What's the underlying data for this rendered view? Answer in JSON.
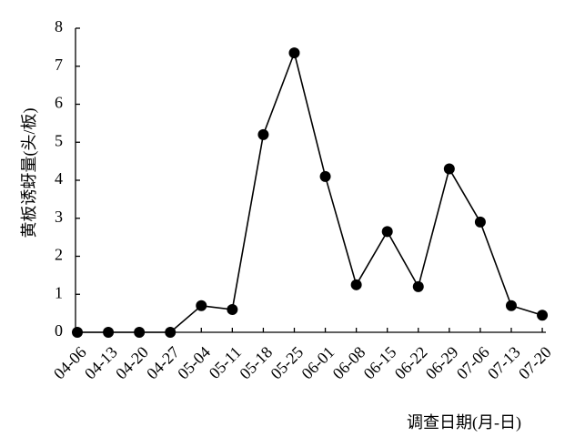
{
  "chart_data": {
    "type": "line",
    "y_label": "黄板诱蚜量(头/板)",
    "x_label": "调查日期(月-日)",
    "categories": [
      "04-06",
      "04-13",
      "04-20",
      "04-27",
      "05-04",
      "05-11",
      "05-18",
      "05-25",
      "06-01",
      "06-08",
      "06-15",
      "06-22",
      "06-29",
      "07-06",
      "07-13",
      "07-20"
    ],
    "values": [
      0,
      0,
      0,
      0,
      0.7,
      0.6,
      5.2,
      7.35,
      4.1,
      1.25,
      2.65,
      1.2,
      4.3,
      2.9,
      0.7,
      0.45
    ],
    "color": "#000000",
    "ylim": [
      0,
      8
    ],
    "yticks": [
      0,
      1,
      2,
      3,
      4,
      5,
      6,
      7,
      8
    ],
    "grid": false
  }
}
